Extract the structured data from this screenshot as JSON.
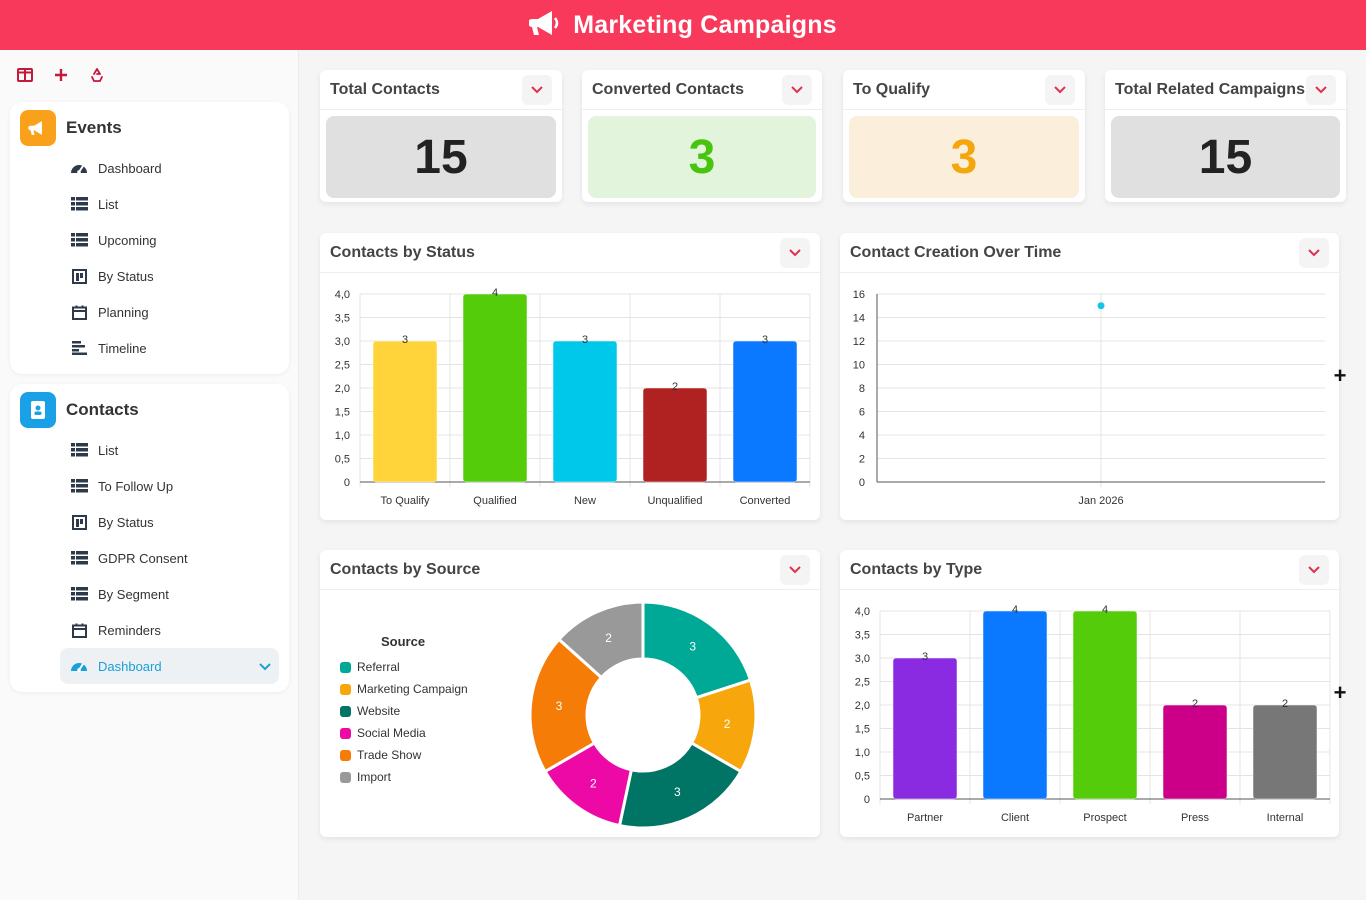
{
  "header": {
    "title": "Marketing Campaigns",
    "icon": "megaphone-icon"
  },
  "toolbar": {
    "buttons": [
      "layout-icon",
      "add-icon",
      "recycle-icon"
    ]
  },
  "sidebar": {
    "events": {
      "title": "Events",
      "color": "#f9a11b",
      "items": [
        {
          "label": "Dashboard",
          "icon": "gauge-icon"
        },
        {
          "label": "List",
          "icon": "list-icon"
        },
        {
          "label": "Upcoming",
          "icon": "list-icon"
        },
        {
          "label": "By Status",
          "icon": "kanban-icon"
        },
        {
          "label": "Planning",
          "icon": "calendar-icon"
        },
        {
          "label": "Timeline",
          "icon": "timeline-icon"
        }
      ]
    },
    "contacts": {
      "title": "Contacts",
      "color": "#1aa0e6",
      "items": [
        {
          "label": "List",
          "icon": "list-icon"
        },
        {
          "label": "To Follow Up",
          "icon": "list-icon"
        },
        {
          "label": "By Status",
          "icon": "kanban-icon"
        },
        {
          "label": "GDPR Consent",
          "icon": "list-icon"
        },
        {
          "label": "By Segment",
          "icon": "list-icon"
        },
        {
          "label": "Reminders",
          "icon": "calendar-icon"
        },
        {
          "label": "Dashboard",
          "icon": "gauge-icon",
          "active": true
        }
      ]
    }
  },
  "kpis": [
    {
      "title": "Total Contacts",
      "value": "15",
      "bg": "#e0e0e0",
      "fg": "#222222"
    },
    {
      "title": "Converted Contacts",
      "value": "3",
      "bg": "#e3f4dd",
      "fg": "#48c40e"
    },
    {
      "title": "To Qualify",
      "value": "3",
      "bg": "#fbefdc",
      "fg": "#f5a60d"
    },
    {
      "title": "Total Related Campaigns",
      "value": "15",
      "bg": "#e0e0e0",
      "fg": "#222222"
    }
  ],
  "charts": {
    "status": {
      "title": "Contacts by Status"
    },
    "creation": {
      "title": "Contact Creation Over Time"
    },
    "source": {
      "title": "Contacts by Source",
      "legend_title": "Source"
    },
    "type": {
      "title": "Contacts by Type"
    }
  },
  "chart_data": [
    {
      "type": "bar",
      "title": "Contacts by Status",
      "categories": [
        "To Qualify",
        "Qualified",
        "New",
        "Unqualified",
        "Converted"
      ],
      "values": [
        3,
        4,
        3,
        2,
        3
      ],
      "colors": [
        "#ffd33a",
        "#55cc0a",
        "#00c8ea",
        "#b02222",
        "#0a78ff"
      ],
      "ylim": [
        0,
        4
      ],
      "yticks": [
        "0",
        "0,5",
        "1,0",
        "1,5",
        "2,0",
        "2,5",
        "3,0",
        "3,5",
        "4,0"
      ],
      "grid": true
    },
    {
      "type": "scatter",
      "title": "Contact Creation Over Time",
      "categories": [
        "Jan 2026"
      ],
      "values": [
        15
      ],
      "color": "#19c3e6",
      "ylim": [
        0,
        16
      ],
      "yticks": [
        "0",
        "2",
        "4",
        "6",
        "8",
        "10",
        "12",
        "14",
        "16"
      ],
      "grid": true
    },
    {
      "type": "pie",
      "title": "Contacts by Source",
      "legend_title": "Source",
      "legend_position": "left",
      "legend": [
        {
          "name": "Referral",
          "color": "#00a896"
        },
        {
          "name": "Marketing Campaign",
          "color": "#f7a70c"
        },
        {
          "name": "Website",
          "color": "#007566"
        },
        {
          "name": "Social Media",
          "color": "#ec09a5"
        },
        {
          "name": "Trade Show",
          "color": "#f57d07"
        },
        {
          "name": "Import",
          "color": "#999999"
        }
      ],
      "slices": [
        {
          "name": "Referral",
          "value": 3,
          "color": "#00a896"
        },
        {
          "name": "Marketing Campaign",
          "value": 2,
          "color": "#f7a70c"
        },
        {
          "name": "Website",
          "value": 3,
          "color": "#007566"
        },
        {
          "name": "Social Media",
          "value": 2,
          "color": "#ec09a5"
        },
        {
          "name": "Trade Show",
          "value": 3,
          "color": "#f57d07"
        },
        {
          "name": "Import",
          "value": 2,
          "color": "#999999"
        }
      ]
    },
    {
      "type": "bar",
      "title": "Contacts by Type",
      "categories": [
        "Partner",
        "Client",
        "Prospect",
        "Press",
        "Internal"
      ],
      "values": [
        3,
        4,
        4,
        2,
        2
      ],
      "colors": [
        "#8a2be2",
        "#0a78ff",
        "#55cc0a",
        "#cc0088",
        "#777777"
      ],
      "ylim": [
        0,
        4
      ],
      "yticks": [
        "0",
        "0,5",
        "1,0",
        "1,5",
        "2,0",
        "2,5",
        "3,0",
        "3,5",
        "4,0"
      ],
      "grid": true
    }
  ]
}
